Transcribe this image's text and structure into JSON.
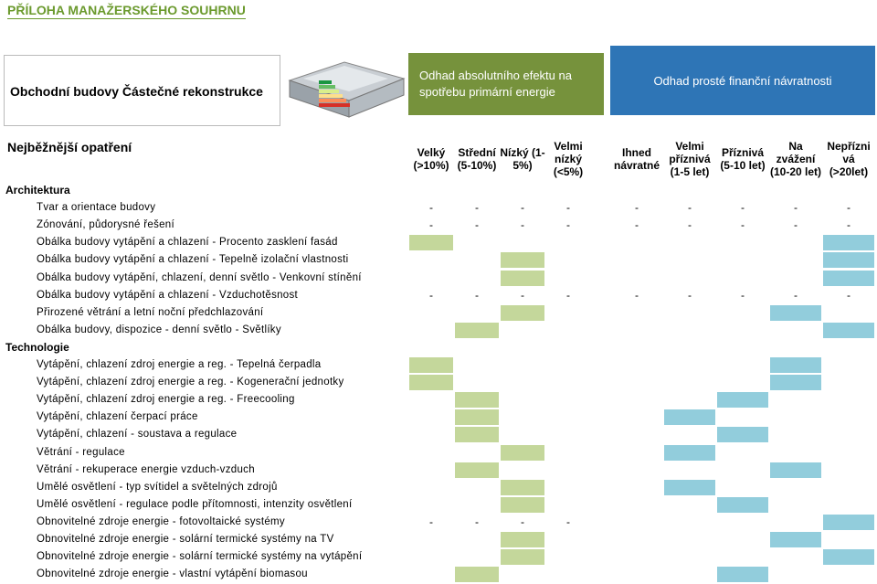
{
  "header": {
    "title": "PŘÍLOHA MANAŽERSKÉHO SOUHRNU",
    "subtitle": "Obchodní budovy  Částečné rekonstrukce",
    "effect_group": "Odhad absolutního efektu na spotřebu primární energie",
    "payback_group": "Odhad prosté finanční návratnosti"
  },
  "table": {
    "measures_header": "Nejběžnější opatření",
    "columns": [
      "Velký (>10%)",
      "Střední (5-10%)",
      "Nízký (1-5%)",
      "Velmi nízký (<5%)",
      "Ihned návratné",
      "Velmi příznivá (1-5 let)",
      "Příznivá (5-10 let)",
      "Na zvážení (10-20 let)",
      "Nepřízni vá (>20let)"
    ],
    "sections": [
      {
        "title": "Architektura",
        "rows": [
          {
            "label": "Tvar a orientace budovy",
            "cells": [
              "-",
              "-",
              "-",
              "-",
              "-",
              "-",
              "-",
              "-",
              "-"
            ]
          },
          {
            "label": "Zónování, půdorysné řešení",
            "cells": [
              "-",
              "-",
              "-",
              "-",
              "-",
              "-",
              "-",
              "-",
              "-"
            ]
          },
          {
            "label": "Obálka budovy  vytápění a chlazení - Procento zasklení fasád",
            "effect": 0,
            "payback": 8
          },
          {
            "label": "Obálka budovy  vytápění a chlazení - Tepelně izolační vlastnosti",
            "effect": 2,
            "payback": 8
          },
          {
            "label": "Obálka budovy  vytápění, chlazení, denní světlo - Venkovní stínění",
            "effect": 2,
            "payback": 8
          },
          {
            "label": "Obálka budovy  vytápění a chlazení - Vzduchotěsnost",
            "cells": [
              "-",
              "-",
              "-",
              "-",
              "-",
              "-",
              "-",
              "-",
              "-"
            ]
          },
          {
            "label": "Přirozené větrání a letní noční předchlazování",
            "effect": 2,
            "payback": 7
          },
          {
            "label": "Obálka budovy, dispozice - denní světlo - Světlíky",
            "effect": 1,
            "payback": 8
          }
        ]
      },
      {
        "title": "Technologie",
        "rows": [
          {
            "label": "Vytápění, chlazení  zdroj energie a reg. - Tepelná čerpadla",
            "effect": 0,
            "payback": 7
          },
          {
            "label": "Vytápění, chlazení  zdroj energie a reg. - Kogenerační jednotky",
            "effect": 0,
            "payback": 7
          },
          {
            "label": "Vytápění, chlazení  zdroj energie a reg. - Freecooling",
            "effect": 1,
            "payback": 6
          },
          {
            "label": "Vytápění, chlazení  čerpací práce",
            "effect": 1,
            "payback": 5
          },
          {
            "label": "Vytápění, chlazení - soustava a regulace",
            "effect": 1,
            "payback": 6
          },
          {
            "label": "Větrání - regulace",
            "effect": 2,
            "payback": 5
          },
          {
            "label": "Větrání - rekuperace energie vzduch-vzduch",
            "effect": 1,
            "payback": 7
          },
          {
            "label": "Umělé osvětlení - typ svítidel a světelných zdrojů",
            "effect": 2,
            "payback": 5
          },
          {
            "label": "Umělé osvětlení - regulace podle přítomnosti, intenzity osvětlení",
            "effect": 2,
            "payback": 6
          },
          {
            "label": "Obnovitelné zdroje energie - fotovoltaické systémy",
            "cells": [
              "-",
              "-",
              "-",
              "-",
              null,
              null,
              null,
              null,
              null
            ],
            "payback": 8
          },
          {
            "label": "Obnovitelné zdroje energie - solární termické systémy na TV",
            "effect": 2,
            "payback": 7
          },
          {
            "label": "Obnovitelné zdroje energie - solární termické systémy na vytápění",
            "effect": 2,
            "payback": 8
          },
          {
            "label": "Obnovitelné zdroje energie - vlastní vytápění biomasou",
            "effect": 1,
            "payback": 6
          }
        ]
      }
    ]
  }
}
